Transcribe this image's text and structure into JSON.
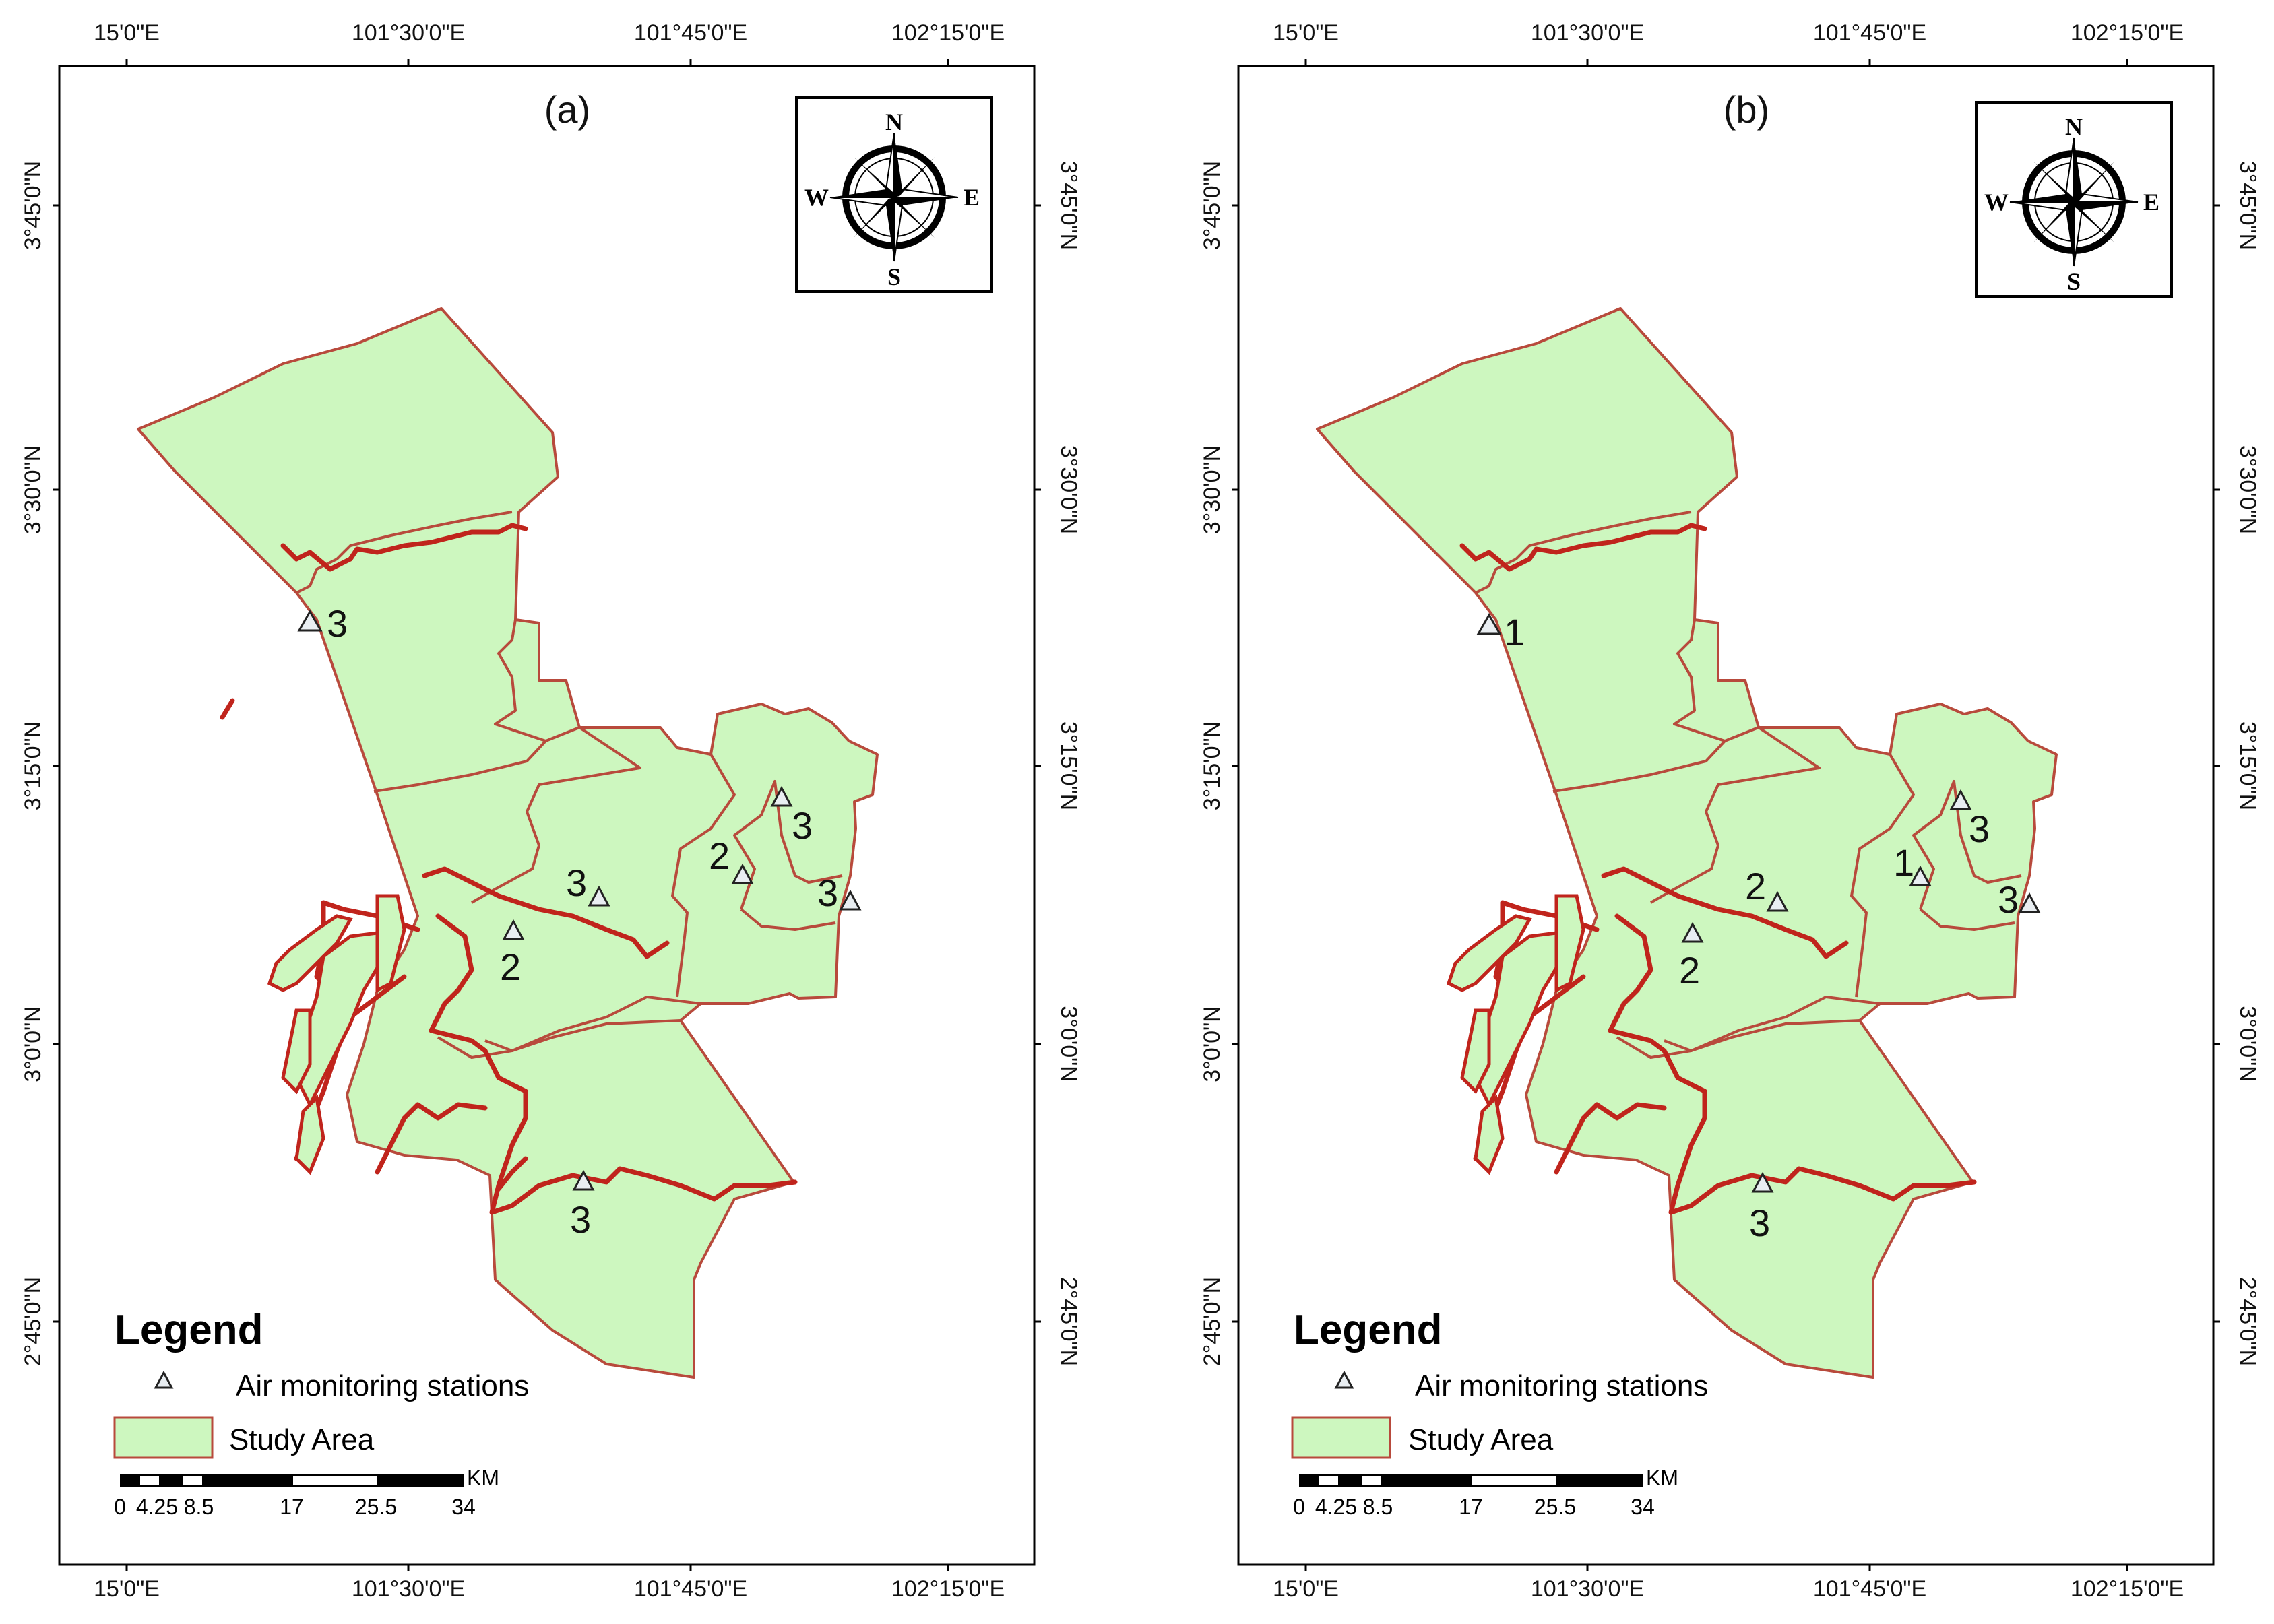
{
  "panels": [
    {
      "id": "a",
      "letter": "(a)",
      "stations": [
        "3",
        "3",
        "2",
        "3",
        "3",
        "2",
        "3"
      ]
    },
    {
      "id": "b",
      "letter": "(b)",
      "stations": [
        "1",
        "3",
        "1",
        "2",
        "3",
        "2",
        "3"
      ]
    }
  ],
  "x_ticks": [
    "15'0\"E",
    "101°30'0\"E",
    "101°45'0\"E",
    "102°15'0\"E"
  ],
  "y_ticks": [
    "3°45'0\"N",
    "3°30'0\"N",
    "3°15'0\"N",
    "3°0'0\"N",
    "2°45'0\"N"
  ],
  "legend": {
    "title": "Legend",
    "station_label": "Air monitoring stations",
    "area_label": "Study Area"
  },
  "scale_bar": {
    "labels": [
      "0",
      "4.25",
      "8.5",
      "17",
      "25.5",
      "34"
    ],
    "unit": "KM"
  },
  "compass": {
    "n": "N",
    "s": "S",
    "e": "E",
    "w": "W"
  },
  "colors": {
    "study_area_fill": "#cdf7bf",
    "boundary": "#b84a3c",
    "river": "#c0241c"
  },
  "icons": {
    "station": "triangle-icon",
    "compass": "compass-rose-icon"
  }
}
